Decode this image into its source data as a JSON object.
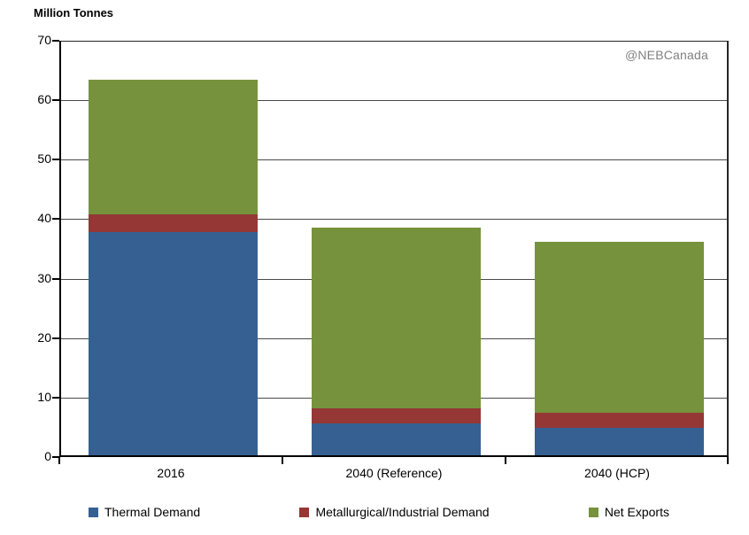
{
  "title": "Million Tonnes",
  "watermark": "@NEBCanada",
  "chart_data": {
    "type": "bar",
    "stacked": true,
    "title": "Million Tonnes",
    "ylabel": "Million Tonnes",
    "xlabel": "",
    "categories": [
      "2016",
      "2040 (Reference)",
      "2040 (HCP)"
    ],
    "series": [
      {
        "name": "Thermal Demand",
        "color": "#366092",
        "values": [
          37.6,
          5.4,
          4.6
        ]
      },
      {
        "name": "Metallurgical/Industrial Demand",
        "color": "#953735",
        "values": [
          2.9,
          2.5,
          2.6
        ]
      },
      {
        "name": "Net Exports",
        "color": "#76923C",
        "values": [
          22.7,
          30.4,
          28.7
        ]
      }
    ],
    "stack_totals": [
      63.2,
      38.3,
      35.9
    ],
    "ylim": [
      0,
      70
    ],
    "yticks": [
      0,
      10,
      20,
      30,
      40,
      50,
      60,
      70
    ],
    "grid": true,
    "legend_position": "bottom",
    "annotations": [
      "@NEBCanada"
    ]
  }
}
